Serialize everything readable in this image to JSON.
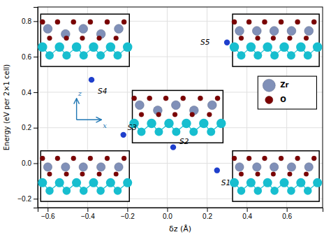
{
  "chart_data": {
    "type": "scatter",
    "x": [
      0.25,
      0.03,
      -0.22,
      -0.38,
      0.3
    ],
    "y": [
      -0.04,
      0.09,
      0.16,
      0.47,
      0.68
    ],
    "labels": [
      "S1",
      "S2",
      "S3",
      "S4",
      "S5"
    ],
    "color": "#1f3fcc",
    "xlabel": "δz (Å)",
    "ylabel": "Energy (eV per 2×1 cell)",
    "xlim": [
      -0.65,
      0.78
    ],
    "ylim": [
      -0.25,
      0.88
    ],
    "xticks": [
      {
        "value": -0.6,
        "label": "−0.6"
      },
      {
        "value": -0.4,
        "label": "−0.4"
      },
      {
        "value": -0.2,
        "label": "−0.2"
      },
      {
        "value": 0.0,
        "label": "0.0"
      },
      0.2,
      0.4,
      0.6
    ],
    "yticks": [
      {
        "value": -0.2,
        "label": "−0.2"
      },
      {
        "value": 0.0,
        "label": "0.0"
      },
      0.2,
      0.4,
      0.6,
      0.8
    ],
    "grid": true,
    "legend": "center right",
    "legend_entries": [
      {
        "name": "Zr",
        "color": "#8090b8"
      },
      {
        "name": "O",
        "color": "#7b0000"
      }
    ],
    "annotations": [
      "z",
      "x"
    ]
  }
}
